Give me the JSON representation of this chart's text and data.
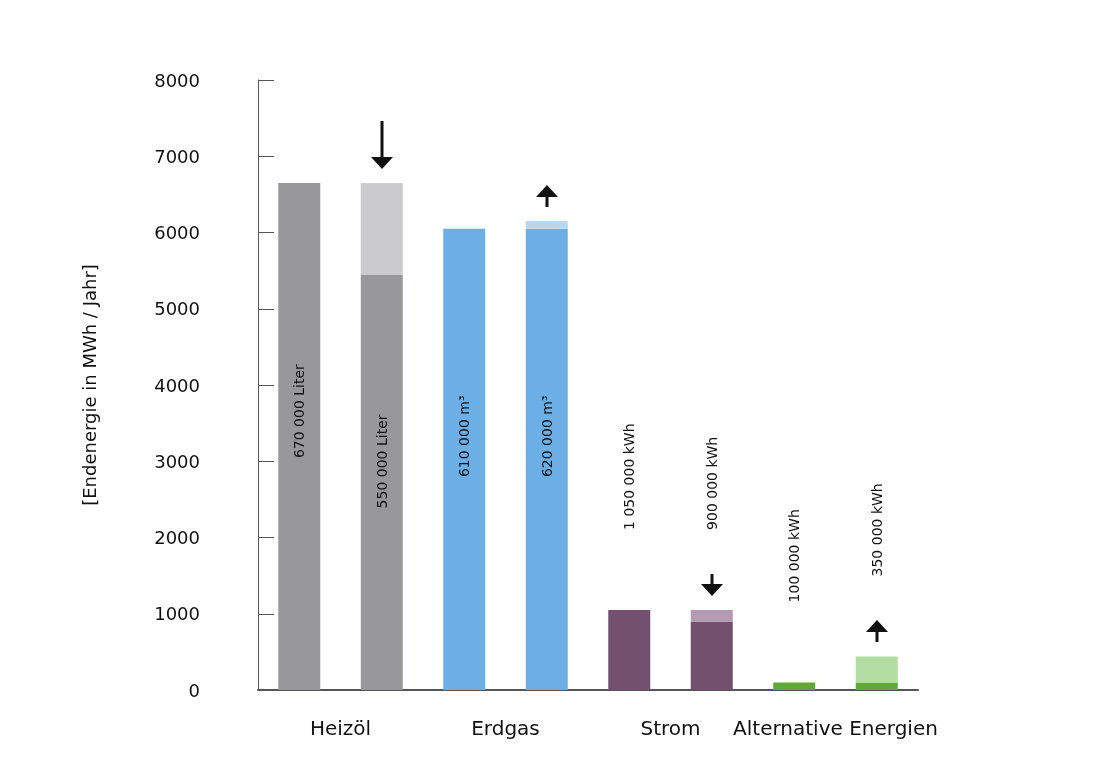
{
  "chart_data": {
    "type": "bar",
    "ylabel": "[Endenergie in MWh / Jahr]",
    "categories": [
      "Heizöl",
      null,
      "Erdgas",
      null,
      "Strom",
      null,
      "Alternative Energien",
      null
    ],
    "ylim": [
      0,
      8000
    ],
    "yticks": [
      0,
      1000,
      2000,
      3000,
      4000,
      5000,
      6000,
      7000,
      8000
    ],
    "grid": false,
    "stacked": true,
    "series": [
      {
        "colors": [
          "#98989b",
          "#98989b",
          "#6cafe7",
          "#6cafe7",
          "#74506f",
          "#74506f",
          "#5fa935",
          "#5fa935"
        ],
        "values": [
          6650,
          5450,
          6050,
          6050,
          1050,
          900,
          100,
          100
        ]
      },
      {
        "colors": [
          null,
          "#cbcbcd",
          null,
          "#b6d7f3",
          null,
          "#b39cb1",
          null,
          "#b2dda2"
        ],
        "values": [
          null,
          1200,
          null,
          100,
          null,
          150,
          null,
          340
        ]
      }
    ],
    "annotations": [
      "670 000 Liter",
      "550 000 Liter",
      "610 000 m³",
      "620 000 m³",
      "1 050 000 kWh",
      "900 000 kWh",
      "100 000 kWh",
      "350 000 kWh"
    ]
  }
}
